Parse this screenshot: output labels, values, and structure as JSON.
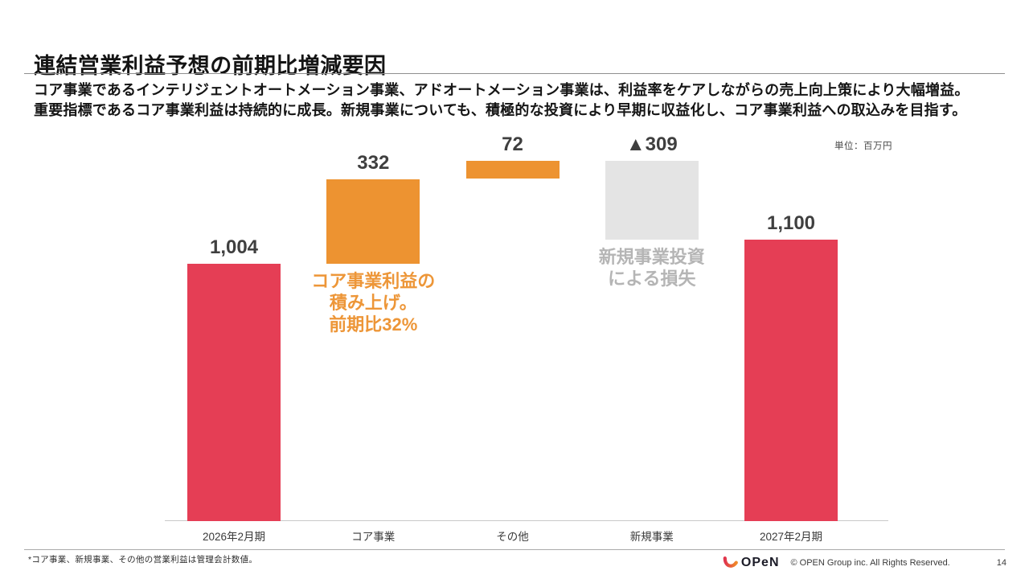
{
  "slide": {
    "title": "連結営業利益予想の前期比増減要因",
    "lead_lines": [
      "コア事業であるインテリジェントオートメーション事業、アドオートメーション事業は、利益率をケアしながらの売上向上策により大幅増益。",
      "重要指標であるコア事業利益は持続的に成長。新規事業についても、積極的な投資により早期に収益化し、コア事業利益への取込みを目指す。"
    ]
  },
  "chart_data": {
    "type": "bar",
    "subtype": "waterfall",
    "unit_label": "単位：百万円",
    "categories": [
      "2026年2月期",
      "コア事業",
      "その他",
      "新規事業",
      "2027年2月期"
    ],
    "values": [
      1004,
      332,
      72,
      -309,
      1100
    ],
    "value_labels": [
      "1,004",
      "332",
      "72",
      "▲309",
      "1,100"
    ],
    "bar_kinds": [
      "total",
      "delta",
      "delta",
      "delta",
      "total"
    ],
    "bar_colors": [
      "#e53e55",
      "#ed9331",
      "#ed9331",
      "#e4e4e4",
      "#e53e55"
    ],
    "value_label_color": "#3f3f3f",
    "ylim": [
      0,
      1408
    ],
    "grid": false,
    "legend": false,
    "annotations": [
      {
        "anchor_category": "コア事業",
        "color": "#ed9638",
        "text_lines": [
          "コア事業利益の",
          "積み上げ。",
          "前期比32%"
        ]
      },
      {
        "anchor_category": "新規事業",
        "color": "#b5b5b5",
        "text_lines": [
          "新規事業投資",
          "による損失"
        ]
      }
    ]
  },
  "footer": {
    "footnote": "*コア事業、新規事業、その他の営業利益は管理会計数値。",
    "logo_text": "OPeN",
    "logo_mark_colors": {
      "start": "#e0354e",
      "end": "#f08a28"
    },
    "copyright": "© OPEN Group inc. All Rights Reserved.",
    "page_number": "14"
  }
}
